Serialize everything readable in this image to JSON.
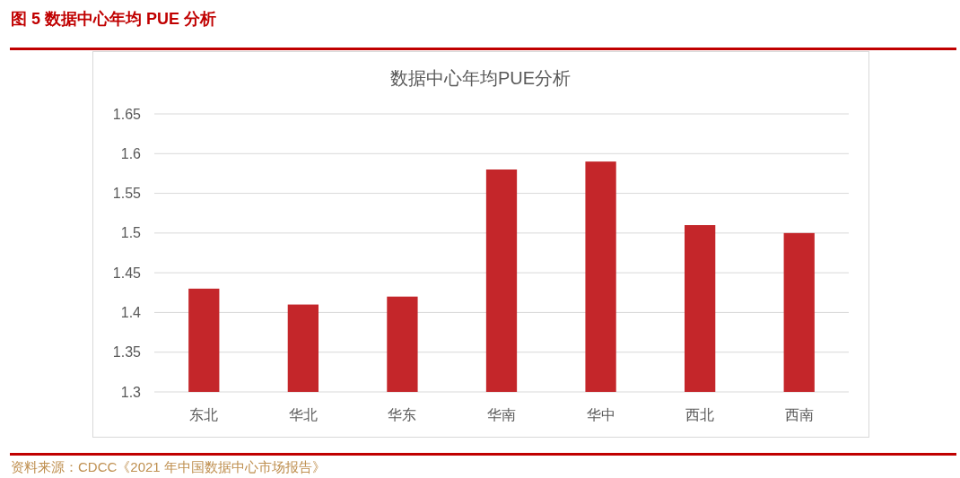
{
  "chart_data": {
    "type": "bar",
    "title": "数据中心年均PUE分析",
    "categories": [
      "东北",
      "华北",
      "华东",
      "华南",
      "华中",
      "西北",
      "西南"
    ],
    "values": [
      1.43,
      1.41,
      1.42,
      1.58,
      1.59,
      1.51,
      1.5
    ],
    "color": "#c4262a",
    "ylim": [
      1.3,
      1.65
    ],
    "yticks": [
      1.3,
      1.35,
      1.4,
      1.45,
      1.5,
      1.55,
      1.6,
      1.65
    ],
    "grid": "y",
    "annotations": [
      "图 5 数据中心年均 PUE 分析",
      "资料来源：CDCC《2021 年中国数据中心市场报告》"
    ]
  }
}
